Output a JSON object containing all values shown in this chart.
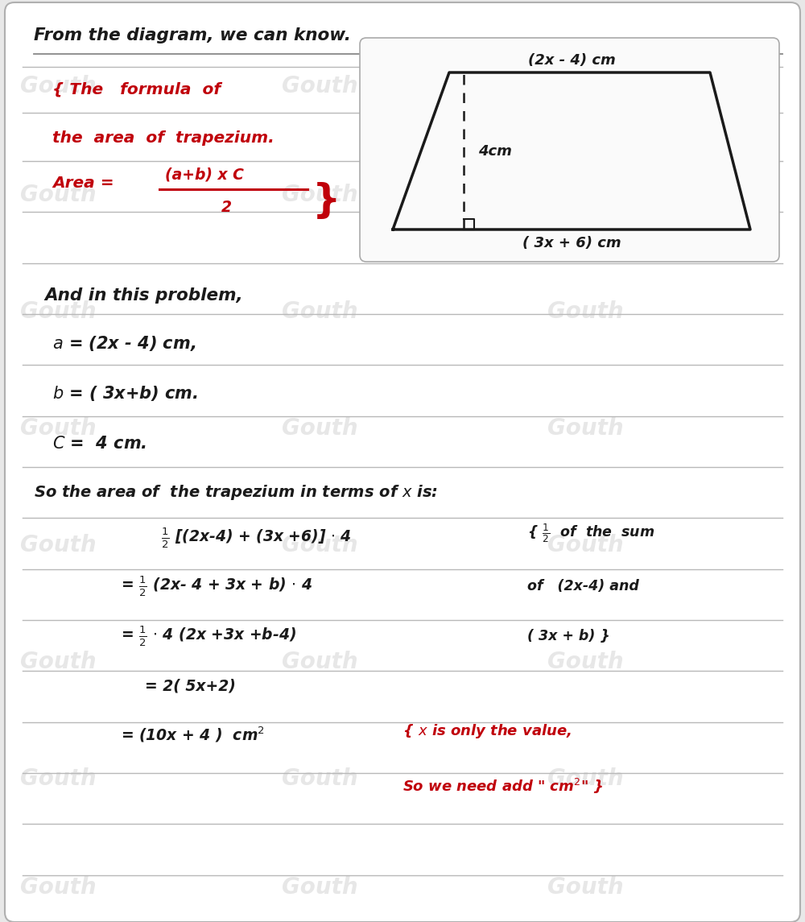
{
  "bg_color": "#e8e8e8",
  "card_color": "#ffffff",
  "red_color": "#c0000a",
  "black_color": "#1a1a1a",
  "wm_color": "#d0d0d0",
  "wm_text": "Gouth",
  "title": "From the diagram, we can know.",
  "trap_top": "(2x - 4) cm",
  "trap_bottom": "( 3x + 6) cm",
  "trap_height": "4cm",
  "line_positions": [
    10.62,
    10.05,
    9.45,
    8.82,
    8.18,
    7.55,
    6.92,
    6.28,
    5.65,
    5.02,
    4.38,
    3.75,
    3.12,
    2.48,
    1.85,
    1.22,
    0.58
  ],
  "wm_rows": [
    [
      [
        0.25,
        10.3
      ],
      [
        3.5,
        10.3
      ],
      [
        6.8,
        10.3
      ]
    ],
    [
      [
        0.25,
        8.95
      ],
      [
        3.5,
        8.95
      ],
      [
        6.8,
        8.95
      ]
    ],
    [
      [
        0.25,
        7.5
      ],
      [
        3.5,
        7.5
      ],
      [
        6.8,
        7.5
      ]
    ],
    [
      [
        0.25,
        6.05
      ],
      [
        3.5,
        6.05
      ],
      [
        6.8,
        6.05
      ]
    ],
    [
      [
        0.25,
        4.6
      ],
      [
        3.5,
        4.6
      ],
      [
        6.8,
        4.6
      ]
    ],
    [
      [
        0.25,
        3.15
      ],
      [
        3.5,
        3.15
      ],
      [
        6.8,
        3.15
      ]
    ],
    [
      [
        0.25,
        1.7
      ],
      [
        3.5,
        1.7
      ],
      [
        6.8,
        1.7
      ]
    ],
    [
      [
        0.25,
        0.35
      ],
      [
        3.5,
        0.35
      ],
      [
        6.8,
        0.35
      ]
    ]
  ]
}
